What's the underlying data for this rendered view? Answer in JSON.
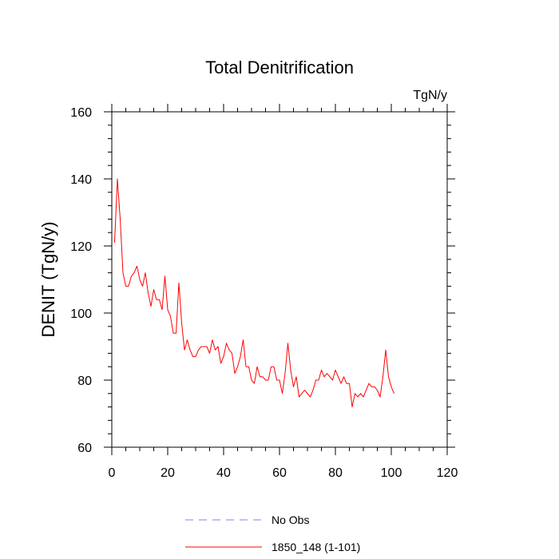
{
  "chart_data": {
    "type": "line",
    "title": "Total Denitrification",
    "units": "TgN/y",
    "xlabel": "",
    "ylabel": "DENIT  (TgN/y)",
    "xlim": [
      0,
      120
    ],
    "ylim": [
      60,
      160
    ],
    "xticks": [
      0,
      20,
      40,
      60,
      80,
      100,
      120
    ],
    "xtick_labels": [
      "0",
      "20",
      "40",
      "60",
      "80",
      "100",
      "120"
    ],
    "yticks": [
      60,
      80,
      100,
      120,
      140,
      160
    ],
    "ytick_labels": [
      "60",
      "80",
      "100",
      "120",
      "140",
      "160"
    ],
    "series": [
      {
        "name": "1850_148 (1-101)",
        "color": "#ff0000",
        "style": "solid",
        "x": [
          1,
          2,
          3,
          4,
          5,
          6,
          7,
          8,
          9,
          10,
          11,
          12,
          13,
          14,
          15,
          16,
          17,
          18,
          19,
          20,
          21,
          22,
          23,
          24,
          25,
          26,
          27,
          28,
          29,
          30,
          31,
          32,
          33,
          34,
          35,
          36,
          37,
          38,
          39,
          40,
          41,
          42,
          43,
          44,
          45,
          46,
          47,
          48,
          49,
          50,
          51,
          52,
          53,
          54,
          55,
          56,
          57,
          58,
          59,
          60,
          61,
          62,
          63,
          64,
          65,
          66,
          67,
          68,
          69,
          70,
          71,
          72,
          73,
          74,
          75,
          76,
          77,
          78,
          79,
          80,
          81,
          82,
          83,
          84,
          85,
          86,
          87,
          88,
          89,
          90,
          91,
          92,
          93,
          94,
          95,
          96,
          97,
          98,
          99,
          100,
          101
        ],
        "values": [
          121,
          140,
          128,
          112,
          108,
          108,
          111,
          112,
          114,
          110,
          108,
          112,
          106,
          102,
          107,
          104,
          104,
          101,
          111,
          101,
          99,
          94,
          94,
          109,
          97,
          89,
          92,
          89,
          87,
          87,
          89,
          90,
          90,
          90,
          88,
          92,
          89,
          90,
          85,
          87,
          91,
          89,
          88,
          82,
          84,
          87,
          92,
          84,
          84,
          80,
          79,
          84,
          81,
          81,
          80,
          80,
          84,
          84,
          80,
          80,
          76,
          82,
          91,
          83,
          78,
          81,
          75,
          76,
          77,
          76,
          75,
          77,
          80,
          80,
          83,
          81,
          82,
          81,
          80,
          83,
          81,
          79,
          81,
          79,
          79,
          72,
          76,
          75,
          76,
          75,
          77,
          79,
          78,
          78,
          77,
          75,
          81,
          89,
          81,
          78,
          76
        ]
      },
      {
        "name": "No Obs",
        "color": "#8080ff",
        "style": "dashed",
        "x": [],
        "values": []
      }
    ],
    "legend": [
      "No Obs",
      "1850_148 (1-101)"
    ],
    "legend_position": "bottom-center",
    "grid": false
  }
}
